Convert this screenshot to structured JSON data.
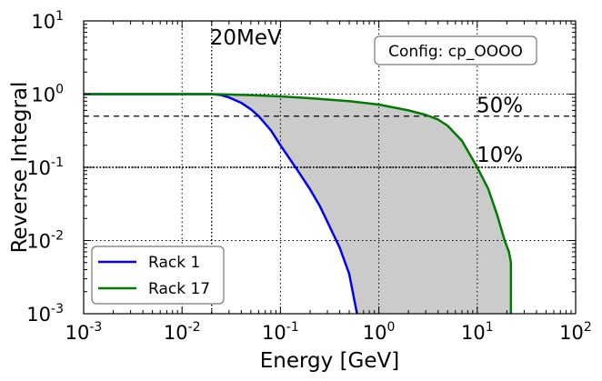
{
  "chart_data": {
    "type": "line",
    "title": "",
    "xlabel": "Energy [GeV]",
    "ylabel": "Reverse Integral",
    "xscale": "log",
    "yscale": "log",
    "xlim": [
      0.001,
      100
    ],
    "ylim": [
      0.001,
      10
    ],
    "grid": true,
    "x_ticks": [
      {
        "base": "10",
        "exp": "-3",
        "value": 0.001
      },
      {
        "base": "10",
        "exp": "-2",
        "value": 0.01
      },
      {
        "base": "10",
        "exp": "-1",
        "value": 0.1
      },
      {
        "base": "10",
        "exp": "0",
        "value": 1
      },
      {
        "base": "10",
        "exp": "1",
        "value": 10
      },
      {
        "base": "10",
        "exp": "2",
        "value": 100
      }
    ],
    "y_ticks": [
      {
        "base": "10",
        "exp": "-3",
        "value": 0.001
      },
      {
        "base": "10",
        "exp": "-2",
        "value": 0.01
      },
      {
        "base": "10",
        "exp": "-1",
        "value": 0.1
      },
      {
        "base": "10",
        "exp": "0",
        "value": 1
      },
      {
        "base": "10",
        "exp": "1",
        "value": 10
      }
    ],
    "annotations": {
      "energy_label": "20MeV",
      "energy_line_x": 0.02,
      "config_label": "Config: cp_OOOO",
      "level_50_label": "50%",
      "level_50_y": 0.5,
      "level_10_label": "10%",
      "level_10_y": 0.1
    },
    "legend": {
      "position": "lower-left"
    },
    "series": [
      {
        "name": "Rack 1",
        "color": "#0000ee",
        "points": [
          [
            0.001,
            1.0
          ],
          [
            0.005,
            1.0
          ],
          [
            0.01,
            1.0
          ],
          [
            0.02,
            1.0
          ],
          [
            0.025,
            0.97
          ],
          [
            0.03,
            0.9
          ],
          [
            0.04,
            0.76
          ],
          [
            0.05,
            0.62
          ],
          [
            0.06,
            0.5
          ],
          [
            0.08,
            0.32
          ],
          [
            0.1,
            0.2
          ],
          [
            0.15,
            0.09
          ],
          [
            0.2,
            0.05
          ],
          [
            0.25,
            0.03
          ],
          [
            0.3,
            0.018
          ],
          [
            0.4,
            0.008
          ],
          [
            0.5,
            0.0035
          ],
          [
            0.6,
            0.001
          ]
        ]
      },
      {
        "name": "Rack 17",
        "color": "#007a00",
        "points": [
          [
            0.001,
            1.0
          ],
          [
            0.01,
            1.0
          ],
          [
            0.02,
            1.0
          ],
          [
            0.05,
            0.97
          ],
          [
            0.1,
            0.93
          ],
          [
            0.2,
            0.88
          ],
          [
            0.5,
            0.8
          ],
          [
            1,
            0.72
          ],
          [
            2,
            0.6
          ],
          [
            3,
            0.52
          ],
          [
            4,
            0.45
          ],
          [
            5,
            0.37
          ],
          [
            7,
            0.23
          ],
          [
            10,
            0.1
          ],
          [
            13,
            0.05
          ],
          [
            16,
            0.022
          ],
          [
            19,
            0.01
          ],
          [
            21,
            0.007
          ],
          [
            22,
            0.005
          ],
          [
            22,
            0.001
          ]
        ]
      }
    ],
    "fill_between": {
      "color": "#cbcbcb",
      "between": [
        "Rack 1",
        "Rack 17"
      ]
    }
  }
}
